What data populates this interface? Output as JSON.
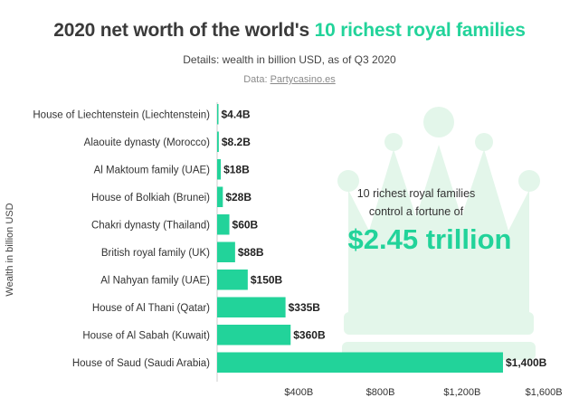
{
  "header": {
    "title_part1": "2020 net worth of the world's ",
    "title_accent": "10 richest royal families",
    "subtitle": "Details: wealth in billion USD, as of Q3 2020",
    "source_prefix": "Data: ",
    "source_link": "Partycasino.es"
  },
  "callout": {
    "line1": "10 richest royal families",
    "line2": "control a fortune of",
    "amount": "$2.45 trillion"
  },
  "colors": {
    "bar": "#22d39a",
    "accent": "#22d39a",
    "crown": "#e3f6ea"
  },
  "chart_data": {
    "type": "bar",
    "orientation": "horizontal",
    "ylabel": "Wealth in billion USD",
    "xlim": [
      0,
      1700
    ],
    "x_ticks": [
      400,
      800,
      1200,
      1600
    ],
    "x_tick_labels": [
      "$400B",
      "$800B",
      "$1,200B",
      "$1,600B"
    ],
    "categories": [
      "House of Liechtenstein (Liechtenstein)",
      "Alaouite dynasty (Morocco)",
      "Al Maktoum family (UAE)",
      "House of Bolkiah (Brunei)",
      "Chakri dynasty (Thailand)",
      "British royal family (UK)",
      "Al Nahyan family (UAE)",
      "House of Al Thani (Qatar)",
      "House of Al Sabah (Kuwait)",
      "House of Saud (Saudi Arabia)"
    ],
    "values": [
      4.4,
      8.2,
      18,
      28,
      60,
      88,
      150,
      335,
      360,
      1400
    ],
    "data_labels": [
      "$4.4B",
      "$8.2B",
      "$18B",
      "$28B",
      "$60B",
      "$88B",
      "$150B",
      "$335B",
      "$360B",
      "$1,400B"
    ],
    "grid": false,
    "legend": "none"
  }
}
